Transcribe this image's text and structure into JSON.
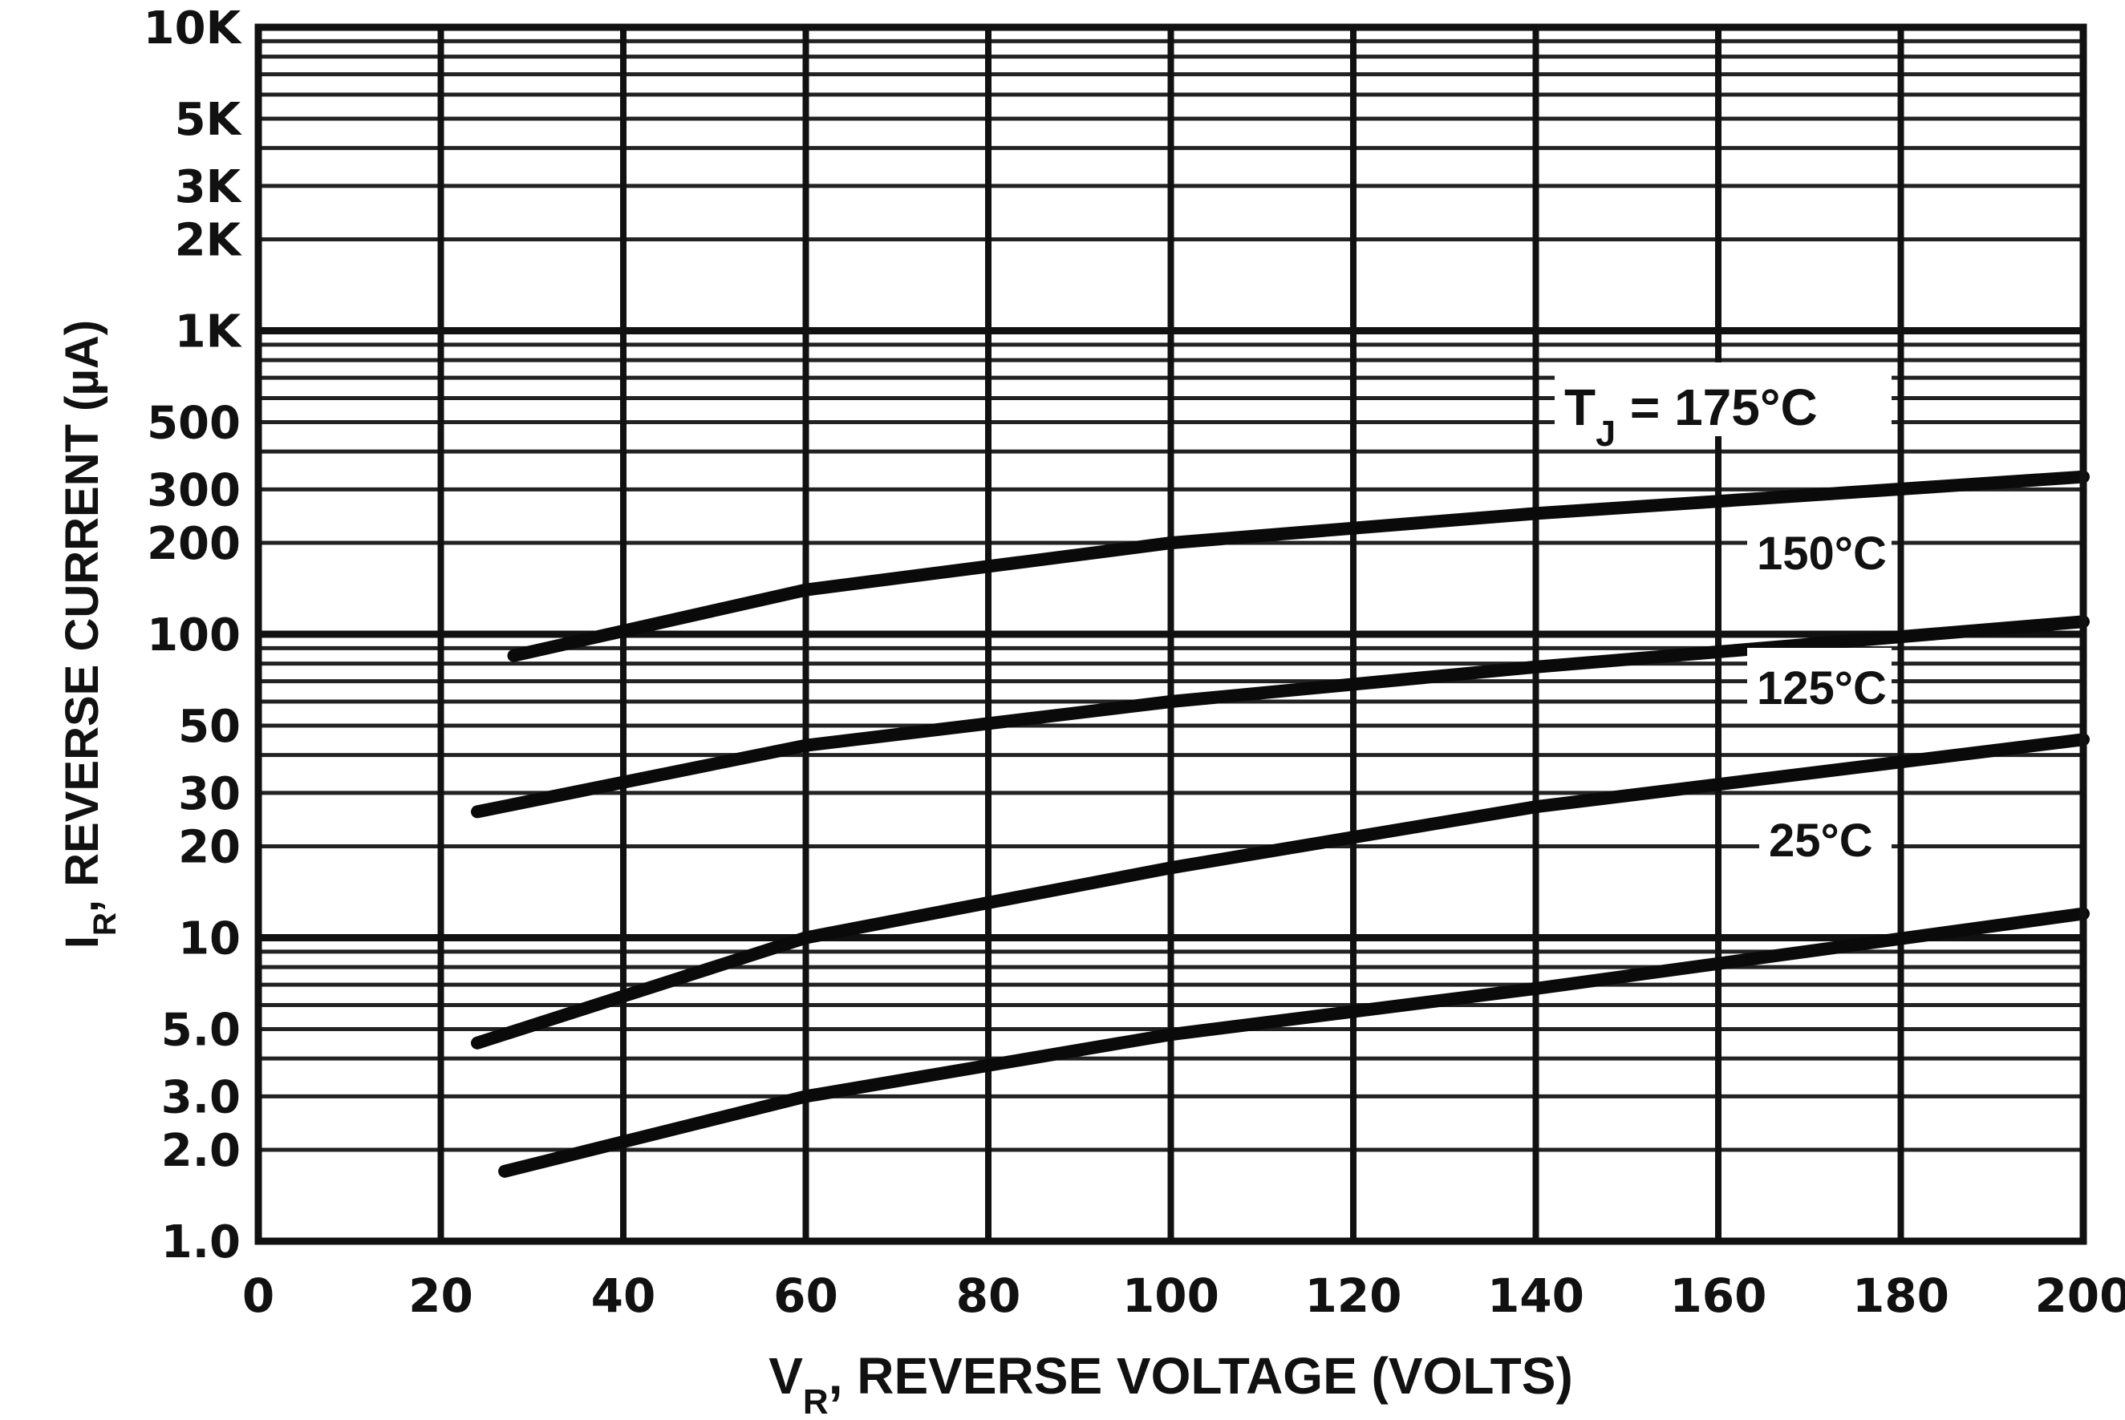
{
  "chart_data": {
    "type": "line",
    "xlabel_main": "V",
    "xlabel_sub": "R",
    "xlabel_rest": ", REVERSE VOLTAGE (VOLTS)",
    "ylabel_main": "I",
    "ylabel_sub": "R",
    "ylabel_rest": ", REVERSE CURRENT (µA)",
    "xlim": [
      0,
      200
    ],
    "ylim": [
      1,
      10000
    ],
    "y_scale": "log",
    "x_ticks": [
      0,
      20,
      40,
      60,
      80,
      100,
      120,
      140,
      160,
      180,
      200
    ],
    "x_tick_labels": [
      "0",
      "20",
      "40",
      "60",
      "80",
      "100",
      "120",
      "140",
      "160",
      "180",
      "200"
    ],
    "y_ticks": [
      1,
      2,
      3,
      5,
      10,
      20,
      30,
      50,
      100,
      200,
      300,
      500,
      1000,
      2000,
      3000,
      5000,
      10000
    ],
    "y_tick_labels": [
      "1.0",
      "2.0",
      "3.0",
      "5.0",
      "10",
      "20",
      "30",
      "50",
      "100",
      "200",
      "300",
      "500",
      "1K",
      "2K",
      "3K",
      "5K",
      "10K"
    ],
    "grid": true,
    "series": [
      {
        "name": "TJ = 175°C",
        "label_prefix": "T",
        "label_sub": "J",
        "label_suffix": " = 175°C",
        "x": [
          28,
          60,
          100,
          140,
          200
        ],
        "y": [
          85,
          140,
          200,
          250,
          330
        ]
      },
      {
        "name": "150°C",
        "label_prefix": "150°C",
        "label_sub": "",
        "label_suffix": "",
        "x": [
          24,
          60,
          100,
          140,
          200
        ],
        "y": [
          26,
          43,
          60,
          78,
          110
        ]
      },
      {
        "name": "125°C",
        "label_prefix": "125°C",
        "label_sub": "",
        "label_suffix": "",
        "x": [
          24,
          60,
          100,
          140,
          200
        ],
        "y": [
          4.5,
          10,
          17,
          27,
          45
        ]
      },
      {
        "name": "25°C",
        "label_prefix": "25°C",
        "label_sub": "",
        "label_suffix": "",
        "x": [
          27,
          60,
          100,
          140,
          200
        ],
        "y": [
          1.7,
          3.0,
          4.8,
          6.8,
          12
        ]
      }
    ]
  }
}
